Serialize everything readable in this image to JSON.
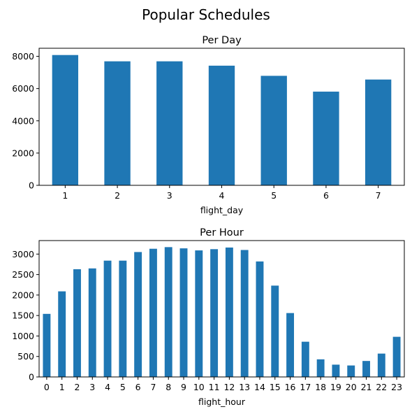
{
  "figure_title": "Popular Schedules",
  "colors": {
    "bar": "#1f77b4",
    "axis": "#000000",
    "background": "#ffffff"
  },
  "chart_data": [
    {
      "type": "bar",
      "title": "Per Day",
      "xlabel": "flight_day",
      "ylabel": "",
      "categories": [
        "1",
        "2",
        "3",
        "4",
        "5",
        "6",
        "7"
      ],
      "values": [
        8080,
        7690,
        7690,
        7420,
        6790,
        5810,
        6560
      ],
      "ylim": [
        0,
        8500
      ],
      "yticks": [
        0,
        2000,
        4000,
        6000,
        8000
      ],
      "grid": false,
      "legend": "none"
    },
    {
      "type": "bar",
      "title": "Per Hour",
      "xlabel": "flight_hour",
      "ylabel": "",
      "categories": [
        "0",
        "1",
        "2",
        "3",
        "4",
        "5",
        "6",
        "7",
        "8",
        "9",
        "10",
        "11",
        "12",
        "13",
        "14",
        "15",
        "16",
        "17",
        "18",
        "19",
        "20",
        "21",
        "22",
        "23"
      ],
      "values": [
        1540,
        2090,
        2630,
        2650,
        2840,
        2840,
        3050,
        3130,
        3170,
        3140,
        3090,
        3120,
        3160,
        3100,
        2820,
        2230,
        1560,
        860,
        430,
        300,
        280,
        390,
        570,
        980
      ],
      "ylim": [
        0,
        3330
      ],
      "yticks": [
        0,
        500,
        1000,
        1500,
        2000,
        2500,
        3000
      ],
      "grid": false,
      "legend": "none"
    }
  ]
}
